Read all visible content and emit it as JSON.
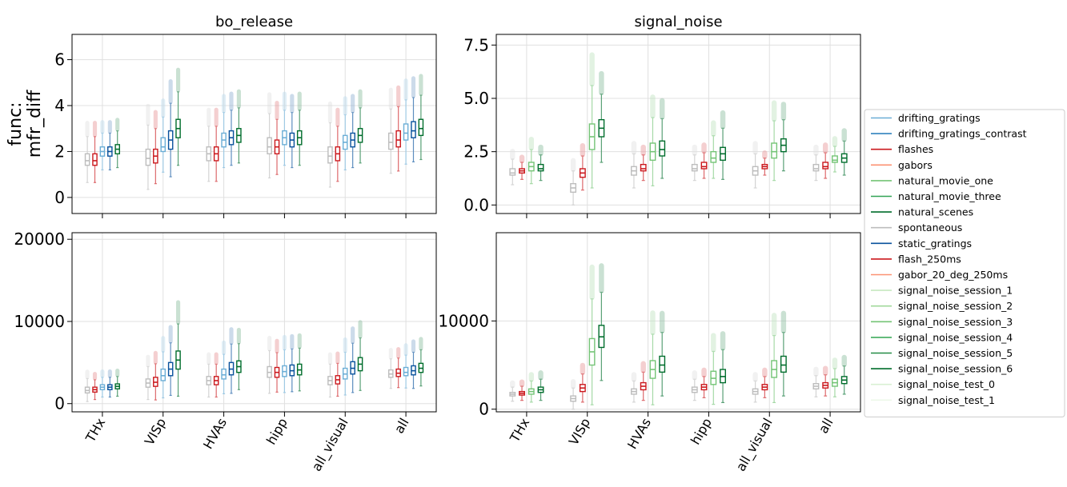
{
  "chart_data": {
    "type": "box",
    "categories": [
      "THx",
      "VISp",
      "HVAs",
      "hipp",
      "all_visual",
      "all"
    ],
    "ylabel": "func:\nmfr_diff",
    "legend": {
      "placement": "center-right",
      "entries": [
        {
          "name": "drifting_gratings",
          "color": "#6baed6"
        },
        {
          "name": "drifting_gratings_contrast",
          "color": "#3182bd"
        },
        {
          "name": "flashes",
          "color": "#cb181d"
        },
        {
          "name": "gabors",
          "color": "#fc9272"
        },
        {
          "name": "natural_movie_one",
          "color": "#74c476"
        },
        {
          "name": "natural_movie_three",
          "color": "#31a354"
        },
        {
          "name": "natural_scenes",
          "color": "#006d2c"
        },
        {
          "name": "spontaneous",
          "color": "#bdbdbd"
        },
        {
          "name": "static_gratings",
          "color": "#08519c"
        },
        {
          "name": "flash_250ms",
          "color": "#cb181d"
        },
        {
          "name": "gabor_20_deg_250ms",
          "color": "#fc9272"
        },
        {
          "name": "signal_noise_session_1",
          "color": "#c7e9c0"
        },
        {
          "name": "signal_noise_session_2",
          "color": "#a1d99b"
        },
        {
          "name": "signal_noise_session_3",
          "color": "#74c476"
        },
        {
          "name": "signal_noise_session_4",
          "color": "#41ab5d"
        },
        {
          "name": "signal_noise_session_5",
          "color": "#238b45"
        },
        {
          "name": "signal_noise_session_6",
          "color": "#006d2c"
        },
        {
          "name": "signal_noise_test_0",
          "color": "#d9f0d3"
        },
        {
          "name": "signal_noise_test_1",
          "color": "#edf8e9"
        }
      ]
    },
    "panels": [
      {
        "title": "bo_release",
        "ylim": [
          -0.7,
          7.1
        ],
        "yticks": [
          0,
          2,
          4,
          6
        ],
        "ytick_labels": [
          "0",
          "2",
          "4",
          "6"
        ],
        "grid": true,
        "series": [
          {
            "name": "spontaneous",
            "color": "#bdbdbd",
            "medians": [
              1.6,
              1.7,
              1.9,
              2.2,
              1.8,
              2.4
            ],
            "q1": [
              1.4,
              1.4,
              1.6,
              1.9,
              1.5,
              2.1
            ],
            "q3": [
              1.9,
              2.1,
              2.2,
              2.6,
              2.2,
              2.8
            ]
          },
          {
            "name": "flashes",
            "color": "#cb181d",
            "medians": [
              1.6,
              1.8,
              1.9,
              2.2,
              1.9,
              2.5
            ],
            "q1": [
              1.4,
              1.5,
              1.6,
              1.9,
              1.6,
              2.2
            ],
            "q3": [
              1.9,
              2.1,
              2.2,
              2.5,
              2.2,
              2.9
            ]
          },
          {
            "name": "drifting_gratings",
            "color": "#6baed6",
            "medians": [
              2.0,
              2.2,
              2.5,
              2.6,
              2.4,
              2.8
            ],
            "q1": [
              1.8,
              2.0,
              2.2,
              2.3,
              2.1,
              2.5
            ],
            "q3": [
              2.2,
              2.6,
              2.8,
              2.9,
              2.7,
              3.2
            ]
          },
          {
            "name": "static_gratings",
            "color": "#08519c",
            "medians": [
              2.0,
              2.5,
              2.6,
              2.5,
              2.5,
              2.9
            ],
            "q1": [
              1.8,
              2.1,
              2.3,
              2.2,
              2.2,
              2.6
            ],
            "q3": [
              2.2,
              2.9,
              2.9,
              2.8,
              2.8,
              3.3
            ]
          },
          {
            "name": "natural_scenes",
            "color": "#006d2c",
            "medians": [
              2.1,
              3.0,
              2.7,
              2.6,
              2.7,
              3.0
            ],
            "q1": [
              1.9,
              2.6,
              2.4,
              2.3,
              2.4,
              2.7
            ],
            "q3": [
              2.3,
              3.4,
              3.0,
              2.9,
              3.0,
              3.4
            ]
          }
        ]
      },
      {
        "title": "signal_noise",
        "ylim": [
          -0.4,
          8.0
        ],
        "yticks": [
          0,
          2.5,
          5,
          7.5
        ],
        "ytick_labels": [
          "0.0",
          "2.5",
          "5.0",
          "7.5"
        ],
        "grid": true,
        "series": [
          {
            "name": "spontaneous",
            "color": "#bdbdbd",
            "medians": [
              1.5,
              0.8,
              1.6,
              1.7,
              1.6,
              1.7
            ],
            "q1": [
              1.4,
              0.6,
              1.4,
              1.6,
              1.4,
              1.6
            ],
            "q3": [
              1.7,
              1.0,
              1.8,
              1.9,
              1.8,
              1.9
            ]
          },
          {
            "name": "flash_250ms",
            "color": "#cb181d",
            "medians": [
              1.6,
              1.5,
              1.7,
              1.8,
              1.8,
              1.8
            ],
            "q1": [
              1.5,
              1.3,
              1.6,
              1.7,
              1.7,
              1.7
            ],
            "q3": [
              1.7,
              1.7,
              1.9,
              2.0,
              1.9,
              2.0
            ]
          },
          {
            "name": "signal_noise_session_3",
            "color": "#74c476",
            "medians": [
              1.8,
              3.2,
              2.5,
              2.2,
              2.5,
              2.1
            ],
            "q1": [
              1.6,
              2.6,
              2.1,
              2.0,
              2.2,
              2.0
            ],
            "q3": [
              2.0,
              3.8,
              2.9,
              2.5,
              2.9,
              2.3
            ]
          },
          {
            "name": "signal_noise_session_6",
            "color": "#006d2c",
            "medians": [
              1.7,
              3.6,
              2.6,
              2.4,
              2.8,
              2.2
            ],
            "q1": [
              1.6,
              3.2,
              2.3,
              2.1,
              2.5,
              2.0
            ],
            "q3": [
              1.9,
              4.0,
              3.0,
              2.7,
              3.1,
              2.4
            ]
          }
        ]
      },
      {
        "title": "",
        "ylim": [
          -1000,
          20800
        ],
        "yticks": [
          0,
          10000,
          20000
        ],
        "ytick_labels": [
          "0",
          "10000",
          "20000"
        ],
        "grid": true,
        "series": [
          {
            "name": "spontaneous",
            "color": "#bdbdbd",
            "medians": [
              1600,
              2500,
              2800,
              3800,
              2800,
              3600
            ],
            "q1": [
              1300,
              2000,
              2300,
              3200,
              2300,
              3200
            ],
            "q3": [
              2000,
              3000,
              3300,
              4500,
              3300,
              4100
            ]
          },
          {
            "name": "flashes",
            "color": "#cb181d",
            "medians": [
              1700,
              2600,
              2800,
              3800,
              2900,
              3700
            ],
            "q1": [
              1400,
              2100,
              2300,
              3200,
              2400,
              3300
            ],
            "q3": [
              2000,
              3200,
              3300,
              4400,
              3400,
              4200
            ]
          },
          {
            "name": "drifting_gratings",
            "color": "#6baed6",
            "medians": [
              2000,
              3400,
              3500,
              3900,
              3600,
              3800
            ],
            "q1": [
              1700,
              2800,
              3000,
              3300,
              3000,
              3400
            ],
            "q3": [
              2300,
              4200,
              4200,
              4600,
              4300,
              4400
            ]
          },
          {
            "name": "static_gratings",
            "color": "#08519c",
            "medians": [
              2000,
              4200,
              4200,
              4000,
              4300,
              4000
            ],
            "q1": [
              1700,
              3400,
              3500,
              3400,
              3600,
              3500
            ],
            "q3": [
              2300,
              5000,
              5000,
              4700,
              5100,
              4600
            ]
          },
          {
            "name": "natural_scenes",
            "color": "#006d2c",
            "medians": [
              2100,
              5300,
              4500,
              4100,
              4800,
              4300
            ],
            "q1": [
              1800,
              4200,
              3800,
              3500,
              4000,
              3800
            ],
            "q3": [
              2400,
              6400,
              5200,
              4800,
              5600,
              4900
            ]
          }
        ]
      },
      {
        "title": "",
        "ylim": [
          -300,
          20000
        ],
        "yticks": [
          0,
          10000
        ],
        "ytick_labels": [
          "0",
          "10000"
        ],
        "grid": true,
        "series": [
          {
            "name": "spontaneous",
            "color": "#bdbdbd",
            "medians": [
              1700,
              1200,
              2000,
              2200,
              2000,
              2600
            ],
            "q1": [
              1500,
              900,
              1700,
              1900,
              1700,
              2300
            ],
            "q3": [
              1900,
              1500,
              2300,
              2500,
              2300,
              2900
            ]
          },
          {
            "name": "flash_250ms",
            "color": "#cb181d",
            "medians": [
              1800,
              2400,
              2600,
              2500,
              2500,
              2700
            ],
            "q1": [
              1600,
              2000,
              2200,
              2200,
              2200,
              2400
            ],
            "q3": [
              2000,
              2800,
              3000,
              2800,
              2800,
              3000
            ]
          },
          {
            "name": "signal_noise_session_3",
            "color": "#74c476",
            "medians": [
              2000,
              6500,
              4500,
              3500,
              4500,
              3000
            ],
            "q1": [
              1700,
              5000,
              3500,
              2800,
              3600,
              2600
            ],
            "q3": [
              2300,
              8000,
              5500,
              4300,
              5500,
              3400
            ]
          },
          {
            "name": "signal_noise_session_6",
            "color": "#006d2c",
            "medians": [
              2200,
              8200,
              5000,
              3700,
              5000,
              3300
            ],
            "q1": [
              1900,
              7000,
              4200,
              3000,
              4200,
              2900
            ],
            "q3": [
              2500,
              9500,
              6000,
              4500,
              6000,
              3700
            ]
          }
        ]
      }
    ]
  }
}
